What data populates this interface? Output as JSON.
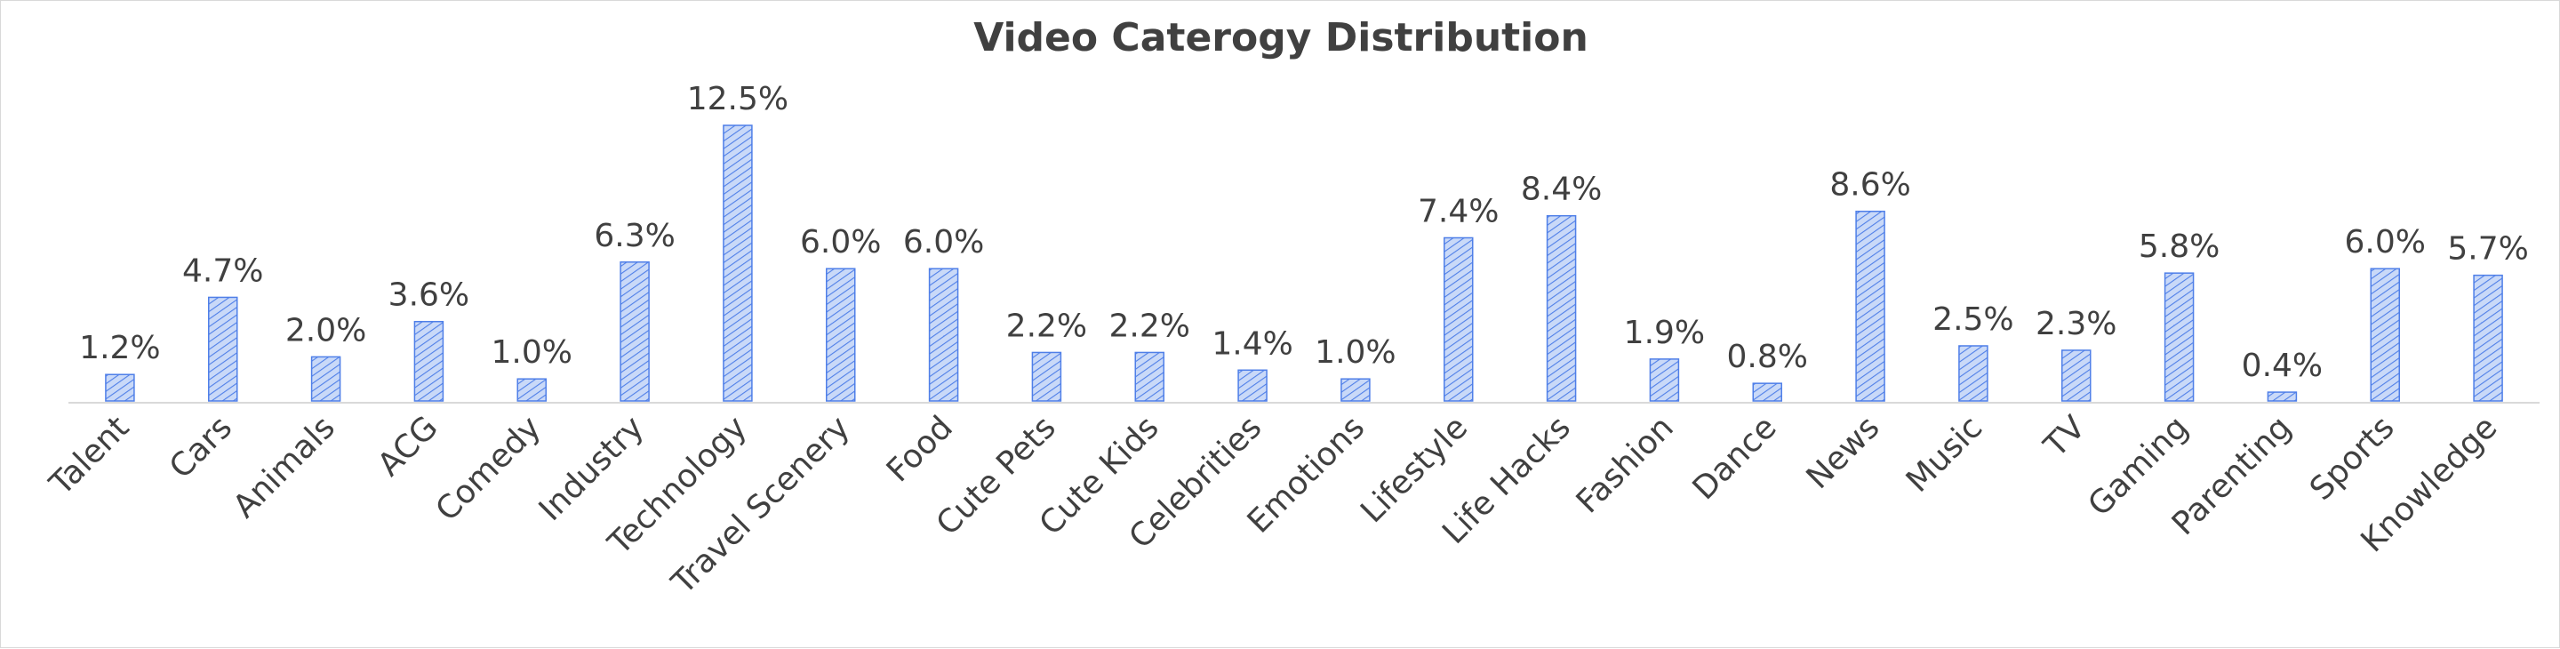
{
  "chart_data": {
    "type": "bar",
    "title": "Video Caterogy Distribution",
    "xlabel": "",
    "ylabel": "",
    "value_suffix": "%",
    "ylim": [
      0,
      12.5
    ],
    "grid": false,
    "legend": "none",
    "bar_color": "#4f7fe8",
    "bar_fill": "#a9c3f5",
    "categories": [
      "Talent",
      "Cars",
      "Animals",
      "ACG",
      "Comedy",
      "Industry",
      "Technology",
      "Travel Scenery",
      "Food",
      "Cute Pets",
      "Cute Kids",
      "Celebrities",
      "Emotions",
      "Lifestyle",
      "Life Hacks",
      "Fashion",
      "Dance",
      "News",
      "Music",
      "TV",
      "Gaming",
      "Parenting",
      "Sports",
      "Knowledge"
    ],
    "values": [
      1.2,
      4.7,
      2.0,
      3.6,
      1.0,
      6.3,
      12.5,
      6.0,
      6.0,
      2.2,
      2.2,
      1.4,
      1.0,
      7.4,
      8.4,
      1.9,
      0.8,
      8.6,
      2.5,
      2.3,
      5.8,
      0.4,
      6.0,
      5.7
    ],
    "data_labels": [
      "1.2%",
      "4.7%",
      "2.0%",
      "3.6%",
      "1.0%",
      "6.3%",
      "12.5%",
      "6.0%",
      "6.0%",
      "2.2%",
      "2.2%",
      "1.4%",
      "1.0%",
      "7.4%",
      "8.4%",
      "1.9%",
      "0.8%",
      "8.6%",
      "2.5%",
      "2.3%",
      "5.8%",
      "0.4%",
      "6.0%",
      "5.7%"
    ]
  }
}
